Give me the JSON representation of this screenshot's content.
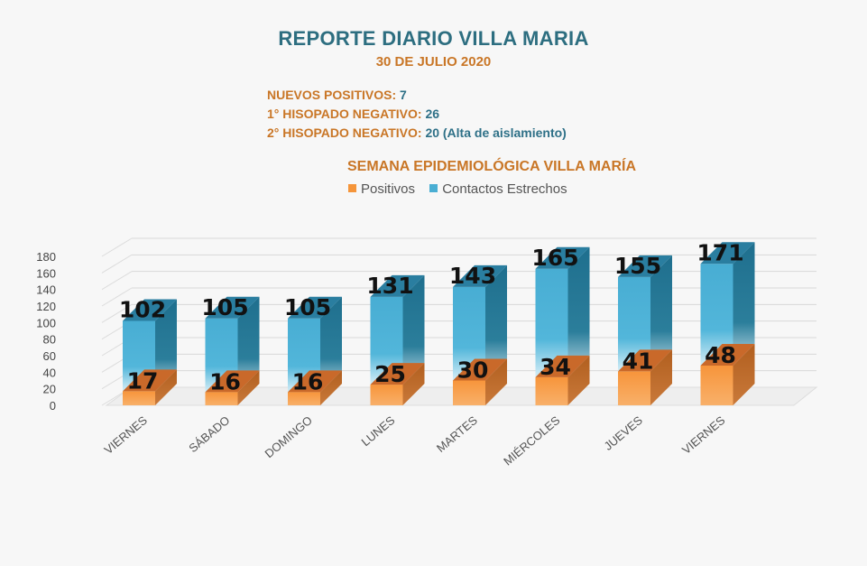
{
  "colors": {
    "title": "#2d6e80",
    "orange": "#c97626",
    "teal": "#2e7087",
    "positivos": "#f5953a",
    "contactos": "#4aaed3"
  },
  "header": {
    "title": "REPORTE DIARIO VILLA MARIA",
    "date": "30 DE JULIO 2020"
  },
  "stats": [
    {
      "label": "NUEVOS POSITIVOS:",
      "value": "7"
    },
    {
      "label": "1° HISOPADO NEGATIVO:",
      "value": "26"
    },
    {
      "label": "2° HISOPADO NEGATIVO:",
      "value": "20 (Alta de aislamiento)"
    }
  ],
  "chart_data": {
    "type": "bar",
    "title": "SEMANA EPIDEMIOLÓGICA VILLA MARÍA",
    "categories": [
      "VIERNES",
      "SÁBADO",
      "DOMINGO",
      "LUNES",
      "MARTES",
      "MIÉRCOLES",
      "JUEVES",
      "VIERNES"
    ],
    "series": [
      {
        "name": "Positivos",
        "values": [
          17,
          16,
          16,
          25,
          30,
          34,
          41,
          48
        ]
      },
      {
        "name": "Contactos Estrechos",
        "values": [
          102,
          105,
          105,
          131,
          143,
          165,
          155,
          171
        ]
      }
    ],
    "yticks": [
      "0",
      "20",
      "40",
      "60",
      "80",
      "100",
      "120",
      "140",
      "160",
      "180"
    ],
    "ylim": [
      0,
      180
    ],
    "legend": "top"
  }
}
